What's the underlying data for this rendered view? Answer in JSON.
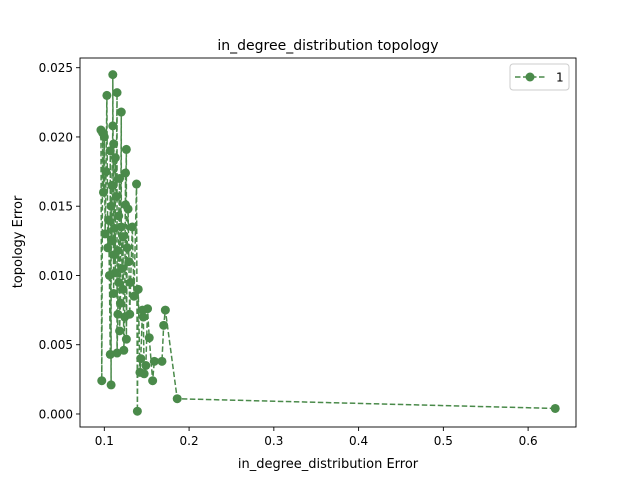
{
  "chart_data": {
    "type": "line",
    "title": "in_degree_distribution topology",
    "xlabel": "in_degree_distribution Error",
    "ylabel": "topology Error",
    "xlim": [
      0.0713,
      0.6565
    ],
    "ylim": [
      -0.00094,
      0.0257
    ],
    "xticks": [
      {
        "value": 0.1,
        "label": "0.1"
      },
      {
        "value": 0.2,
        "label": "0.2"
      },
      {
        "value": 0.3,
        "label": "0.3"
      },
      {
        "value": 0.4,
        "label": "0.4"
      },
      {
        "value": 0.5,
        "label": "0.5"
      },
      {
        "value": 0.6,
        "label": "0.6"
      }
    ],
    "yticks": [
      {
        "value": 0.0,
        "label": "0.000"
      },
      {
        "value": 0.005,
        "label": "0.005"
      },
      {
        "value": 0.01,
        "label": "0.010"
      },
      {
        "value": 0.015,
        "label": "0.015"
      },
      {
        "value": 0.02,
        "label": "0.020"
      },
      {
        "value": 0.025,
        "label": "0.025"
      }
    ],
    "grid": false,
    "legend_position": "upper right",
    "series": [
      {
        "name": "1",
        "color": "#4a8a4a",
        "linestyle": "dashed",
        "marker": "circle",
        "points": [
          [
            0.632,
            0.0004
          ],
          [
            0.186,
            0.0011
          ],
          [
            0.172,
            0.0075
          ],
          [
            0.17,
            0.0064
          ],
          [
            0.168,
            0.0038
          ],
          [
            0.159,
            0.0038
          ],
          [
            0.157,
            0.0024
          ],
          [
            0.153,
            0.0055
          ],
          [
            0.151,
            0.0076
          ],
          [
            0.149,
            0.0035
          ],
          [
            0.147,
            0.0029
          ],
          [
            0.146,
            0.007
          ],
          [
            0.145,
            0.0075
          ],
          [
            0.143,
            0.004
          ],
          [
            0.142,
            0.003
          ],
          [
            0.14,
            0.009
          ],
          [
            0.139,
            0.0002
          ],
          [
            0.138,
            0.0166
          ],
          [
            0.135,
            0.0085
          ],
          [
            0.133,
            0.0135
          ],
          [
            0.131,
            0.0095
          ],
          [
            0.13,
            0.0072
          ],
          [
            0.129,
            0.011
          ],
          [
            0.128,
            0.0148
          ],
          [
            0.127,
            0.012
          ],
          [
            0.126,
            0.0054
          ],
          [
            0.126,
            0.0191
          ],
          [
            0.125,
            0.0151
          ],
          [
            0.125,
            0.0174
          ],
          [
            0.124,
            0.007
          ],
          [
            0.123,
            0.0046
          ],
          [
            0.122,
            0.0128
          ],
          [
            0.122,
            0.009
          ],
          [
            0.121,
            0.0105
          ],
          [
            0.12,
            0.0135
          ],
          [
            0.12,
            0.0218
          ],
          [
            0.119,
            0.008
          ],
          [
            0.118,
            0.006
          ],
          [
            0.118,
            0.017
          ],
          [
            0.117,
            0.0143
          ],
          [
            0.117,
            0.0095
          ],
          [
            0.116,
            0.0118
          ],
          [
            0.116,
            0.0072
          ],
          [
            0.115,
            0.0044
          ],
          [
            0.115,
            0.0232
          ],
          [
            0.114,
            0.0157
          ],
          [
            0.113,
            0.0185
          ],
          [
            0.113,
            0.0102
          ],
          [
            0.112,
            0.0134
          ],
          [
            0.112,
            0.0115
          ],
          [
            0.111,
            0.0195
          ],
          [
            0.111,
            0.0087
          ],
          [
            0.11,
            0.0245
          ],
          [
            0.11,
            0.0208
          ],
          [
            0.109,
            0.0165
          ],
          [
            0.109,
            0.0125
          ],
          [
            0.108,
            0.015
          ],
          [
            0.108,
            0.0021
          ],
          [
            0.107,
            0.019
          ],
          [
            0.107,
            0.0043
          ],
          [
            0.106,
            0.01
          ],
          [
            0.105,
            0.014
          ],
          [
            0.104,
            0.012
          ],
          [
            0.103,
            0.023
          ],
          [
            0.102,
            0.0175
          ],
          [
            0.101,
            0.013
          ],
          [
            0.1,
            0.02
          ],
          [
            0.099,
            0.016
          ],
          [
            0.098,
            0.0203
          ],
          [
            0.097,
            0.0024
          ],
          [
            0.096,
            0.0205
          ]
        ]
      }
    ]
  }
}
